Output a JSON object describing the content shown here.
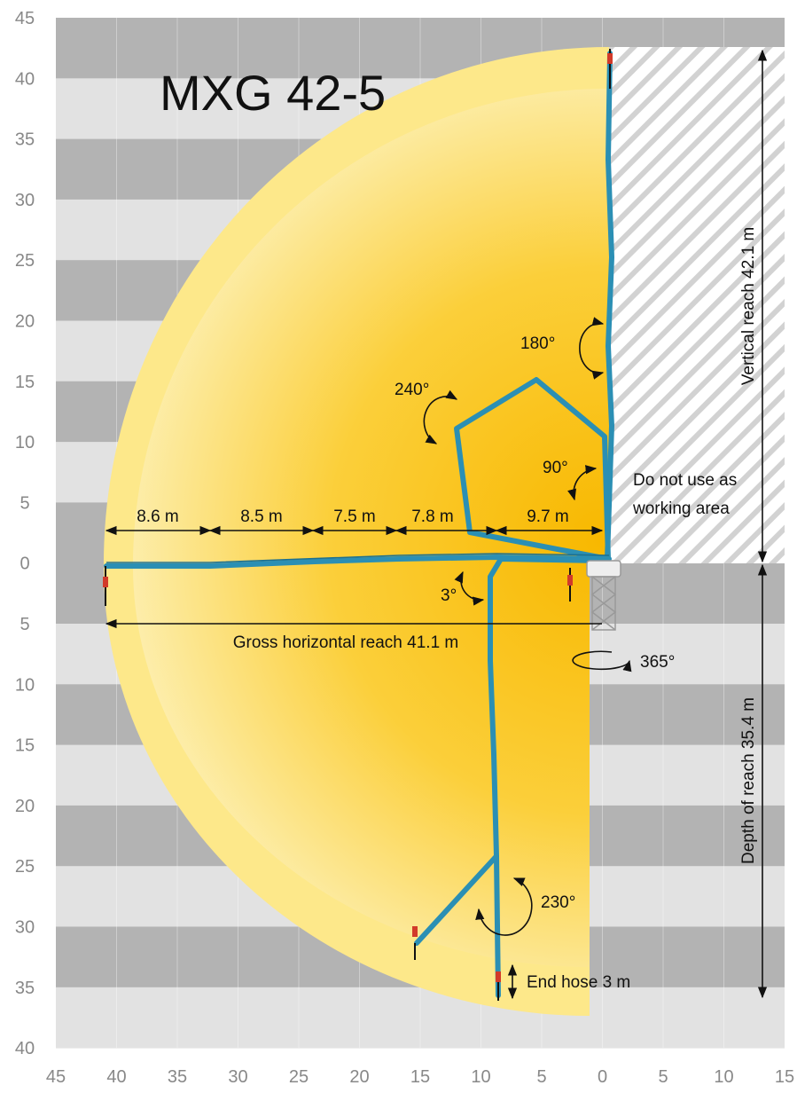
{
  "title": "MXG 42-5",
  "y_axis_labels": [
    "45",
    "40",
    "35",
    "30",
    "25",
    "20",
    "15",
    "10",
    "5",
    "0",
    "5",
    "10",
    "15",
    "20",
    "25",
    "30",
    "35",
    "40"
  ],
  "x_axis_labels": [
    "45",
    "40",
    "35",
    "30",
    "25",
    "20",
    "15",
    "10",
    "5",
    "0",
    "5",
    "10",
    "15"
  ],
  "boom_sections": [
    "8.6 m",
    "8.5 m",
    "7.5 m",
    "7.8 m",
    "9.7 m"
  ],
  "gross_horizontal_reach": "Gross horizontal reach 41.1 m",
  "vertical_reach": "Vertical reach 42.1 m",
  "depth_of_reach": "Depth of reach 35.4 m",
  "restricted_area": [
    "Do not use as",
    "working area"
  ],
  "angles": [
    "180°",
    "240°",
    "90°",
    "3°",
    "365°",
    "230°"
  ],
  "end_hose": "End hose 3 m"
}
